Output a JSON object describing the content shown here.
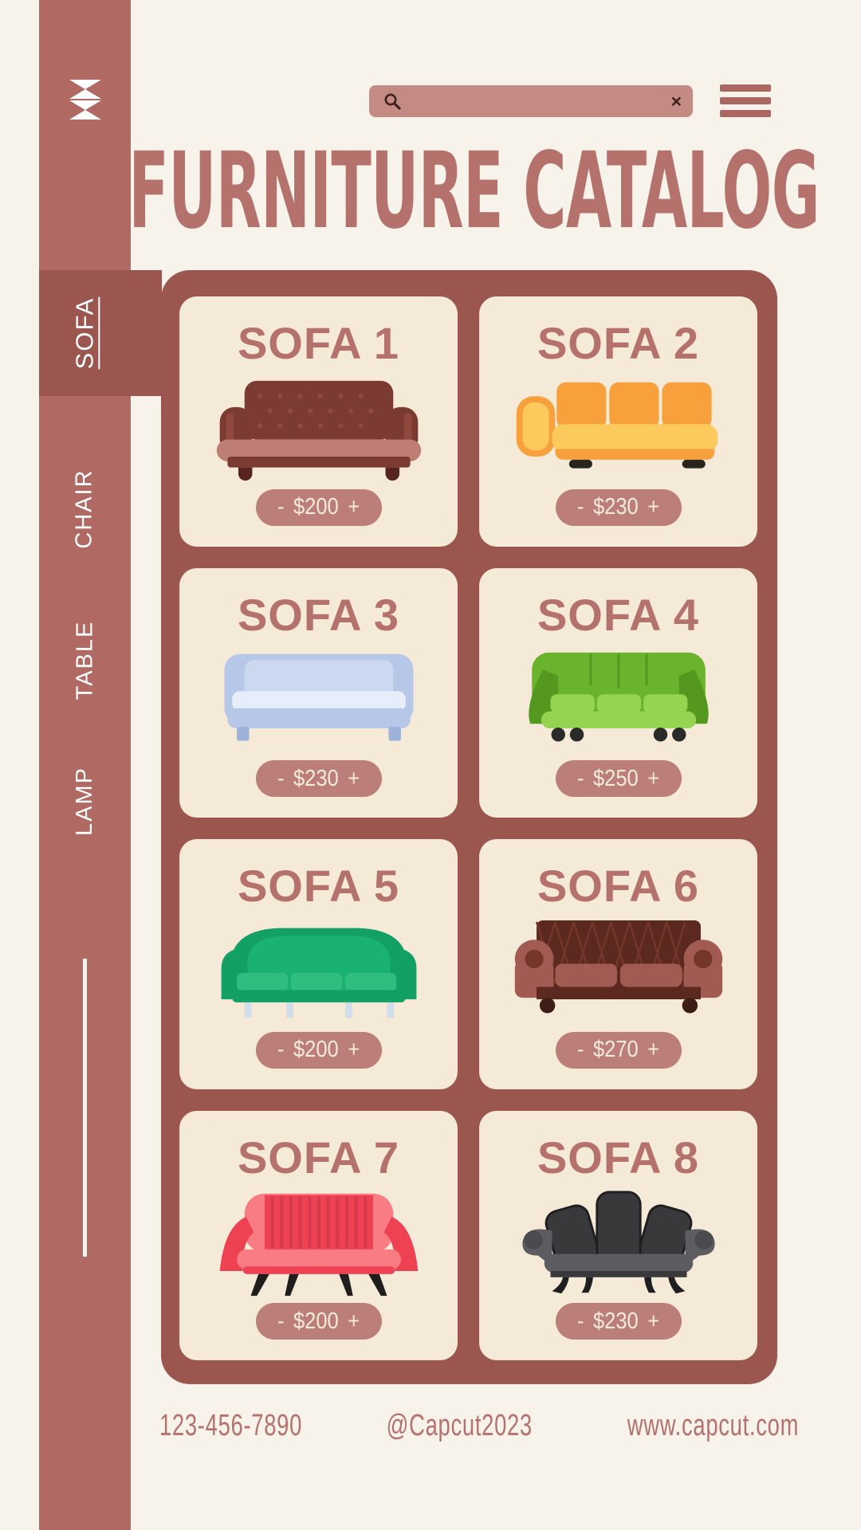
{
  "app": {
    "background": "#f7f3eb",
    "accent": "#b5716b",
    "panel_color": "#9a564f",
    "sidebar_color": "#b06963",
    "card_color": "#f5ead8",
    "pill_color": "#bc7e78",
    "search_color": "#c48b85"
  },
  "topbar": {
    "logo_icon": "capcut-logo",
    "search": {
      "value": "",
      "placeholder": "",
      "search_icon": "magnifier",
      "clear_label": "×"
    },
    "menu_icon": "hamburger"
  },
  "header": {
    "title": "FURNITURE CATALOG"
  },
  "sidebar": {
    "items": [
      {
        "label": "SOFA",
        "active": true
      },
      {
        "label": "CHAIR",
        "active": false
      },
      {
        "label": "TABLE",
        "active": false
      },
      {
        "label": "LAMP",
        "active": false
      }
    ]
  },
  "catalog": {
    "minus_label": "-",
    "plus_label": "+",
    "cards": [
      {
        "title": "SOFA 1",
        "price": "$200",
        "variant": "chesterfield_high",
        "colors": {
          "a": "#7c3b32",
          "b": "#bf7e75",
          "c": "#57241e",
          "d": "#91493f"
        }
      },
      {
        "title": "SOFA 2",
        "price": "$230",
        "variant": "modern",
        "colors": {
          "a": "#f8a13c",
          "b": "#fcc95d",
          "c": "#28251f",
          "d": "#ef8f2f"
        }
      },
      {
        "title": "SOFA 3",
        "price": "$230",
        "variant": "straight",
        "colors": {
          "a": "#b7c7e8",
          "b": "#e7eef9",
          "c": "#9db2d8",
          "d": "#ccd8ef"
        }
      },
      {
        "title": "SOFA 4",
        "price": "$250",
        "variant": "green_round",
        "colors": {
          "a": "#69b32d",
          "b": "#94d451",
          "c": "#2a2a28",
          "d": "#54981f"
        }
      },
      {
        "title": "SOFA 5",
        "price": "$200",
        "variant": "slope",
        "colors": {
          "a": "#13a065",
          "b": "#2fbe80",
          "c": "#cfdeea",
          "d": "#19b273"
        }
      },
      {
        "title": "SOFA 6",
        "price": "$270",
        "variant": "chesterfield_roll",
        "colors": {
          "a": "#5c2921",
          "b": "#a25b52",
          "c": "#3f1d17",
          "d": "#74362b"
        }
      },
      {
        "title": "SOFA 7",
        "price": "$200",
        "variant": "loveseat",
        "colors": {
          "a": "#ee4152",
          "b": "#f97c85",
          "c": "#201d1d",
          "d": "#d53a4a"
        }
      },
      {
        "title": "SOFA 8",
        "price": "$230",
        "variant": "vintage",
        "colors": {
          "a": "#39393c",
          "b": "#5d5d61",
          "c": "#1f1f21",
          "d": "#4b4b4f"
        }
      }
    ]
  },
  "footer": {
    "phone": "123-456-7890",
    "handle": "@Capcut2023",
    "website": "www.capcut.com"
  }
}
